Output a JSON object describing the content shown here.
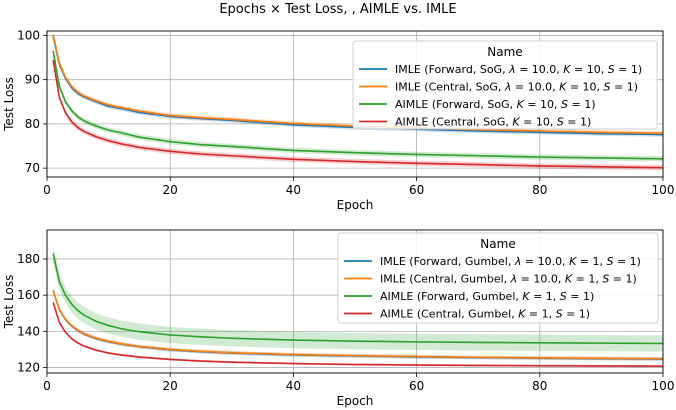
{
  "figure_title": "Epochs × Test Loss, , AIMLE vs. IMLE",
  "chart_data": [
    {
      "type": "line",
      "title": "",
      "xlabel": "Epoch",
      "ylabel": "Test Loss",
      "xlim": [
        0,
        100
      ],
      "ylim": [
        68,
        101
      ],
      "xticks": [
        0,
        20,
        40,
        60,
        80,
        100
      ],
      "yticks": [
        70,
        80,
        90,
        100
      ],
      "grid": true,
      "legend": {
        "title": "Name",
        "placement": "top-right",
        "entries": [
          "IMLE (Forward, SoG, λ = 10.0, K = 10, S = 1)",
          "IMLE (Central, SoG, λ = 10.0, K = 10, S = 1)",
          "AIMLE (Forward, SoG, K = 10, S = 1)",
          "AIMLE (Central, SoG, K = 10, S = 1)"
        ]
      },
      "series": [
        {
          "name": "IMLE (Forward, SoG, λ = 10.0, K = 10, S = 1)",
          "color": "#1f77b4",
          "x": [
            1,
            2,
            3,
            4,
            5,
            6,
            8,
            10,
            12,
            15,
            20,
            25,
            30,
            40,
            50,
            60,
            70,
            80,
            90,
            100
          ],
          "y": [
            99.8,
            93.5,
            90.3,
            88.2,
            86.9,
            86.1,
            85.0,
            84.0,
            83.5,
            82.6,
            81.7,
            81.2,
            80.8,
            79.8,
            79.2,
            78.8,
            78.4,
            78.1,
            77.8,
            77.6
          ],
          "band": 0.5
        },
        {
          "name": "IMLE (Central, SoG, λ = 10.0, K = 10, S = 1)",
          "color": "#ff7f0e",
          "x": [
            1,
            2,
            3,
            4,
            5,
            6,
            8,
            10,
            12,
            15,
            20,
            25,
            30,
            40,
            50,
            60,
            70,
            80,
            90,
            100
          ],
          "y": [
            100.2,
            93.8,
            90.6,
            88.5,
            87.2,
            86.3,
            85.2,
            84.3,
            83.7,
            82.9,
            81.9,
            81.4,
            81.0,
            80.1,
            79.5,
            79.1,
            78.7,
            78.4,
            78.1,
            77.9
          ],
          "band": 0.5
        },
        {
          "name": "AIMLE (Forward, SoG, K = 10, S = 1)",
          "color": "#2ca02c",
          "x": [
            1,
            2,
            3,
            4,
            5,
            6,
            8,
            10,
            12,
            15,
            20,
            25,
            30,
            40,
            50,
            60,
            70,
            80,
            90,
            100
          ],
          "y": [
            96.5,
            88.5,
            85.0,
            83.0,
            81.6,
            80.7,
            79.5,
            78.6,
            78.0,
            77.0,
            76.0,
            75.3,
            74.9,
            74.0,
            73.5,
            73.1,
            72.8,
            72.5,
            72.3,
            72.1
          ],
          "band": 0.6
        },
        {
          "name": "AIMLE (Central, SoG, K = 10, S = 1)",
          "color": "#d62728",
          "x": [
            1,
            2,
            3,
            4,
            5,
            6,
            8,
            10,
            12,
            15,
            20,
            25,
            30,
            40,
            50,
            60,
            70,
            80,
            90,
            100
          ],
          "y": [
            94.5,
            86.0,
            82.5,
            80.5,
            79.2,
            78.3,
            77.1,
            76.2,
            75.5,
            74.7,
            73.8,
            73.2,
            72.8,
            72.0,
            71.5,
            71.1,
            70.8,
            70.5,
            70.3,
            70.1
          ],
          "band": 0.6
        }
      ]
    },
    {
      "type": "line",
      "title": "",
      "xlabel": "Epoch",
      "ylabel": "Test Loss",
      "xlim": [
        0,
        100
      ],
      "ylim": [
        117,
        196
      ],
      "xticks": [
        0,
        20,
        40,
        60,
        80,
        100
      ],
      "yticks": [
        120,
        140,
        160,
        180
      ],
      "grid": true,
      "legend": {
        "title": "Name",
        "placement": "top-right",
        "entries": [
          "IMLE (Forward, Gumbel, λ = 10.0, K = 1, S = 1)",
          "IMLE (Central, Gumbel, λ = 10.0, K = 1, S = 1)",
          "AIMLE (Forward, Gumbel, K = 1, S = 1)",
          "AIMLE (Central, Gumbel, K = 1, S = 1)"
        ]
      },
      "series": [
        {
          "name": "IMLE (Forward, Gumbel, λ = 10.0, K = 1, S = 1)",
          "color": "#1f77b4",
          "x": [
            1,
            2,
            3,
            4,
            5,
            6,
            8,
            10,
            12,
            15,
            20,
            25,
            30,
            40,
            50,
            60,
            70,
            80,
            90,
            100
          ],
          "y": [
            162.5,
            152.0,
            146.5,
            143.0,
            140.5,
            138.5,
            136.0,
            134.3,
            133.0,
            131.5,
            129.8,
            128.8,
            128.0,
            127.0,
            126.4,
            125.9,
            125.5,
            125.2,
            124.9,
            124.7
          ],
          "band": 1.0
        },
        {
          "name": "IMLE (Central, Gumbel, λ = 10.0, K = 1, S = 1)",
          "color": "#ff7f0e",
          "x": [
            1,
            2,
            3,
            4,
            5,
            6,
            8,
            10,
            12,
            15,
            20,
            25,
            30,
            40,
            50,
            60,
            70,
            80,
            90,
            100
          ],
          "y": [
            162.7,
            152.2,
            146.7,
            143.2,
            140.7,
            138.7,
            136.2,
            134.5,
            133.2,
            131.7,
            130.0,
            129.0,
            128.2,
            127.2,
            126.6,
            126.1,
            125.7,
            125.4,
            125.1,
            124.9
          ],
          "band": 1.0
        },
        {
          "name": "AIMLE (Forward, Gumbel, K = 1, S = 1)",
          "color": "#2ca02c",
          "x": [
            1,
            2,
            3,
            4,
            5,
            6,
            8,
            10,
            12,
            15,
            20,
            25,
            30,
            40,
            50,
            60,
            70,
            80,
            90,
            100
          ],
          "y": [
            183.0,
            167.5,
            160.0,
            155.0,
            151.5,
            149.0,
            145.5,
            143.2,
            141.5,
            139.8,
            138.0,
            137.0,
            136.2,
            135.2,
            134.6,
            134.2,
            133.9,
            133.7,
            133.5,
            133.3
          ],
          "band": 4.5
        },
        {
          "name": "AIMLE (Central, Gumbel, K = 1, S = 1)",
          "color": "#d62728",
          "x": [
            1,
            2,
            3,
            4,
            5,
            6,
            8,
            10,
            12,
            15,
            20,
            25,
            30,
            40,
            50,
            60,
            70,
            80,
            90,
            100
          ],
          "y": [
            156.0,
            145.0,
            139.5,
            136.0,
            133.6,
            131.9,
            129.6,
            128.0,
            127.0,
            125.8,
            124.5,
            123.6,
            123.0,
            122.2,
            121.7,
            121.4,
            121.2,
            121.0,
            120.9,
            120.8
          ],
          "band": 0.6
        }
      ]
    }
  ]
}
